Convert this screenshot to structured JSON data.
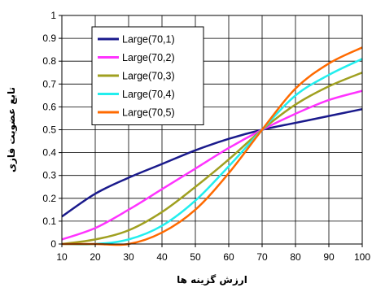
{
  "chart_data": {
    "type": "line",
    "title": "",
    "xlabel": "ارزش گزینه ها",
    "ylabel": "تابع عضویت فازی",
    "xlim": [
      10,
      100
    ],
    "ylim": [
      0,
      1
    ],
    "x_ticks": [
      10,
      20,
      30,
      40,
      50,
      60,
      70,
      80,
      90,
      100
    ],
    "y_ticks": [
      0,
      0.1,
      0.2,
      0.3,
      0.4,
      0.5,
      0.6,
      0.7,
      0.8,
      0.9,
      1
    ],
    "y_tick_labels": [
      "0",
      "0.1",
      "0.2",
      "0.3",
      "0.4",
      "0.5",
      "0.6",
      "0.7",
      "0.8",
      "0.9",
      "1"
    ],
    "grid": true,
    "legend_position": "top-left",
    "x": [
      10,
      20,
      30,
      40,
      50,
      60,
      70,
      80,
      90,
      100
    ],
    "series": [
      {
        "name": "Large(70,1)",
        "color": "#1a1a8c",
        "values": [
          0.12,
          0.22,
          0.29,
          0.35,
          0.41,
          0.46,
          0.5,
          0.53,
          0.56,
          0.59
        ]
      },
      {
        "name": "Large(70,2)",
        "color": "#ff33ff",
        "values": [
          0.02,
          0.07,
          0.15,
          0.24,
          0.33,
          0.42,
          0.5,
          0.57,
          0.63,
          0.67
        ]
      },
      {
        "name": "Large(70,3)",
        "color": "#a0a020",
        "values": [
          0.0,
          0.02,
          0.06,
          0.14,
          0.25,
          0.37,
          0.5,
          0.61,
          0.69,
          0.75
        ]
      },
      {
        "name": "Large(70,4)",
        "color": "#22eeee",
        "values": [
          0.0,
          0.0,
          0.02,
          0.08,
          0.19,
          0.34,
          0.5,
          0.65,
          0.74,
          0.81
        ]
      },
      {
        "name": "Large(70,5)",
        "color": "#ff6a00",
        "values": [
          0.0,
          0.0,
          0.0,
          0.05,
          0.15,
          0.31,
          0.5,
          0.68,
          0.79,
          0.86
        ]
      }
    ]
  }
}
